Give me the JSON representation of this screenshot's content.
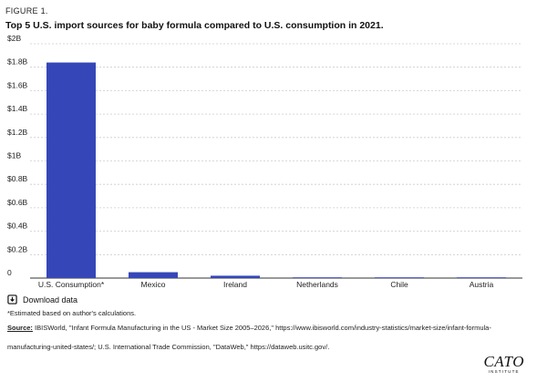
{
  "figure_label": "FIGURE 1.",
  "chart_data": {
    "type": "bar",
    "title": "Top 5 U.S. import sources for baby formula compared to U.S. consumption in 2021.",
    "categories": [
      "U.S. Consumption*",
      "Mexico",
      "Ireland",
      "Netherlands",
      "Chile",
      "Austria"
    ],
    "values": [
      1.84,
      0.05,
      0.02,
      0.004,
      0.003,
      0.001
    ],
    "value_unit": "billion USD",
    "ylim": [
      0,
      2
    ],
    "y_ticks": [
      0,
      0.2,
      0.4,
      0.6,
      0.8,
      1,
      1.2,
      1.4,
      1.6,
      1.8,
      2
    ],
    "y_tick_labels": [
      "0",
      "$0.2B",
      "$0.4B",
      "$0.6B",
      "$0.8B",
      "$1B",
      "$1.2B",
      "$1.4B",
      "$1.6B",
      "$1.8B",
      "$2B"
    ],
    "xlabel": "",
    "ylabel": "",
    "grid": true,
    "bar_color": "#3547b8",
    "grid_color": "#cccccc"
  },
  "download_label": "Download data",
  "footnote": "*Estimated based on author's calculations.",
  "source_label": "Source:",
  "source_text": "IBISWorld, \"Infant Formula Manufacturing in the US - Market Size 2005–2026,\" https://www.ibisworld.com/industry-statistics/market-size/infant-formula-manufacturing-united-states/; U.S. International Trade Commission, \"DataWeb,\" https://dataweb.usitc.gov/.",
  "logo": {
    "main": "CATO",
    "sub": "INSTITUTE"
  }
}
